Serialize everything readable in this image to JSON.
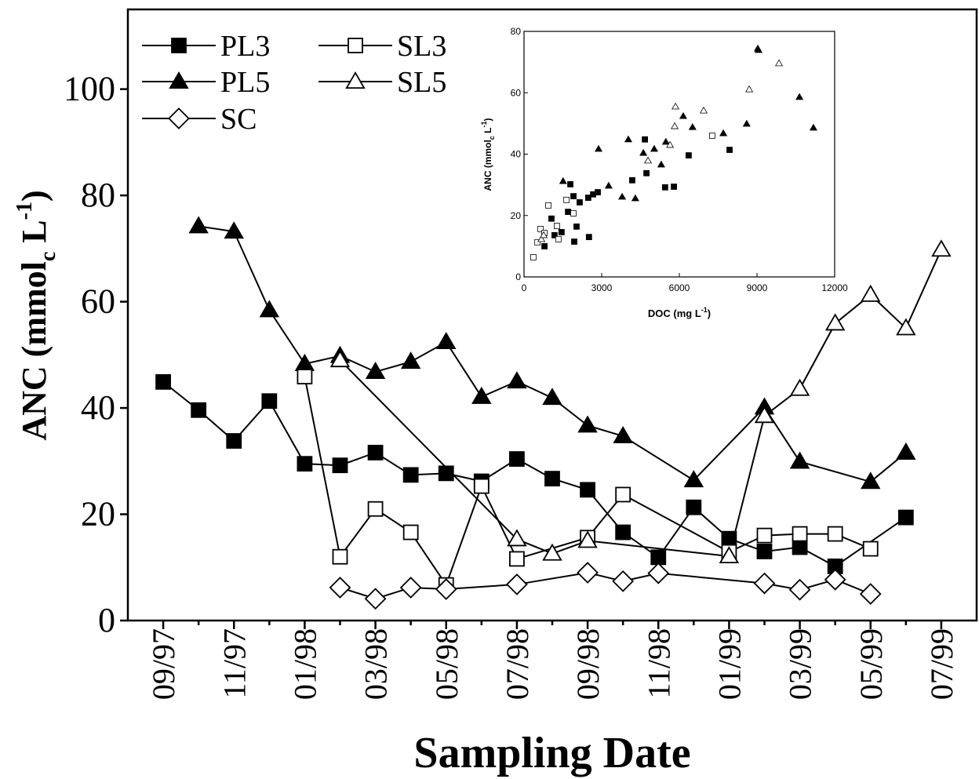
{
  "chart_data": [
    {
      "type": "line",
      "ylabel": {
        "text": "ANC (mmol",
        "sub": "c",
        "mid": " L",
        "sup": "-1",
        "end": ")"
      },
      "xlabel": "Sampling Date",
      "categories": [
        "09/97",
        null,
        "11/97",
        null,
        "01/98",
        null,
        "03/98",
        null,
        "05/98",
        null,
        "07/98",
        null,
        "09/98",
        null,
        "11/98",
        null,
        "01/99",
        null,
        "03/99",
        null,
        "05/99",
        null,
        "07/99"
      ],
      "ylim": [
        0,
        115
      ],
      "yticks": [
        0,
        20,
        40,
        60,
        80,
        100
      ],
      "series": [
        {
          "name": "PL3",
          "marker": "square",
          "filled": true,
          "color": "#000000",
          "values": [
            44.9,
            39.6,
            33.8,
            41.3,
            29.5,
            29.2,
            31.6,
            27.4,
            27.7,
            26.2,
            30.4,
            26.7,
            24.6,
            16.6,
            11.9,
            21.3,
            15.4,
            13.0,
            13.8,
            10.2,
            null,
            19.4,
            null
          ]
        },
        {
          "name": "PL5",
          "marker": "triangle",
          "filled": true,
          "color": "#000000",
          "values": [
            null,
            74.2,
            73.2,
            58.4,
            48.3,
            49.8,
            46.8,
            48.7,
            52.4,
            42.1,
            45.0,
            41.9,
            36.7,
            34.7,
            null,
            26.4,
            null,
            40.1,
            29.9,
            null,
            26.1,
            31.6,
            null
          ]
        },
        {
          "name": "SL3",
          "marker": "square",
          "filled": false,
          "color": "#000000",
          "values": [
            null,
            null,
            null,
            null,
            45.9,
            12.0,
            21.0,
            16.6,
            6.7,
            25.3,
            11.6,
            null,
            15.6,
            23.7,
            null,
            null,
            12.9,
            16.0,
            16.3,
            16.3,
            13.5,
            null,
            null
          ]
        },
        {
          "name": "SL5",
          "marker": "triangle",
          "filled": false,
          "color": "#000000",
          "values": [
            null,
            null,
            null,
            null,
            null,
            49.0,
            null,
            null,
            null,
            null,
            15.3,
            12.6,
            15.0,
            null,
            null,
            null,
            12.1,
            38.5,
            43.6,
            55.9,
            61.3,
            55.0,
            69.8
          ]
        },
        {
          "name": "SC",
          "marker": "diamond",
          "filled": false,
          "color": "#000000",
          "values": [
            null,
            null,
            null,
            null,
            null,
            6.2,
            4.1,
            6.2,
            5.9,
            null,
            6.8,
            null,
            9.0,
            7.4,
            8.9,
            null,
            null,
            7.0,
            5.8,
            7.7,
            5.0,
            null,
            null
          ]
        }
      ]
    },
    {
      "type": "scatter",
      "xlabel": {
        "text": "DOC (mg L",
        "sup": "-1",
        "end": ")"
      },
      "ylabel": {
        "text": "ANC (mmol",
        "sub": "c",
        "mid": " L",
        "sup": "-1",
        "end": ")"
      },
      "xlim": [
        0,
        12000
      ],
      "xticks": [
        0,
        3000,
        6000,
        9000,
        12000
      ],
      "ylim": [
        0,
        80
      ],
      "yticks": [
        0,
        20,
        40,
        60,
        80
      ],
      "series": [
        {
          "marker": "square",
          "filled": true,
          "color": "#000000",
          "x": [
            790,
            1060,
            1180,
            1450,
            1700,
            1790,
            1910,
            1940,
            2030,
            2150,
            2480,
            2510,
            2670,
            2850,
            4180,
            4670,
            4730,
            5450,
            5790,
            6360,
            7940
          ],
          "y": [
            10,
            19,
            13.6,
            14.6,
            21.2,
            30.2,
            26.3,
            11.5,
            16.4,
            24.3,
            25.8,
            13.0,
            26.9,
            27.6,
            31.5,
            44.8,
            33.8,
            29.2,
            29.4,
            39.6,
            41.4
          ]
        },
        {
          "marker": "triangle",
          "filled": true,
          "color": "#000000",
          "x": [
            1510,
            2880,
            3270,
            3790,
            4030,
            4300,
            4610,
            5030,
            5300,
            5480,
            6150,
            6510,
            7700,
            8600,
            9030,
            9060,
            10640,
            11180
          ],
          "y": [
            31.2,
            41.7,
            29.7,
            26.1,
            44.8,
            25.6,
            40.4,
            41.7,
            36.6,
            44.0,
            52.4,
            48.8,
            46.8,
            49.9,
            74.4,
            73.9,
            58.6,
            48.6
          ]
        },
        {
          "marker": "square",
          "filled": false,
          "color": "#000000",
          "x": [
            360,
            520,
            640,
            790,
            940,
            1270,
            1330,
            1640,
            1910,
            7270
          ],
          "y": [
            6.4,
            11.3,
            15.6,
            14.3,
            23.3,
            16.6,
            12.3,
            25.1,
            20.7,
            46.0
          ]
        },
        {
          "marker": "triangle",
          "filled": false,
          "color": "#000000",
          "x": [
            670,
            760,
            4790,
            5640,
            5820,
            5850,
            6940,
            8700,
            9850
          ],
          "y": [
            12.3,
            13.6,
            37.9,
            43.0,
            49.1,
            55.5,
            54.2,
            61.1,
            69.6
          ]
        }
      ]
    }
  ]
}
